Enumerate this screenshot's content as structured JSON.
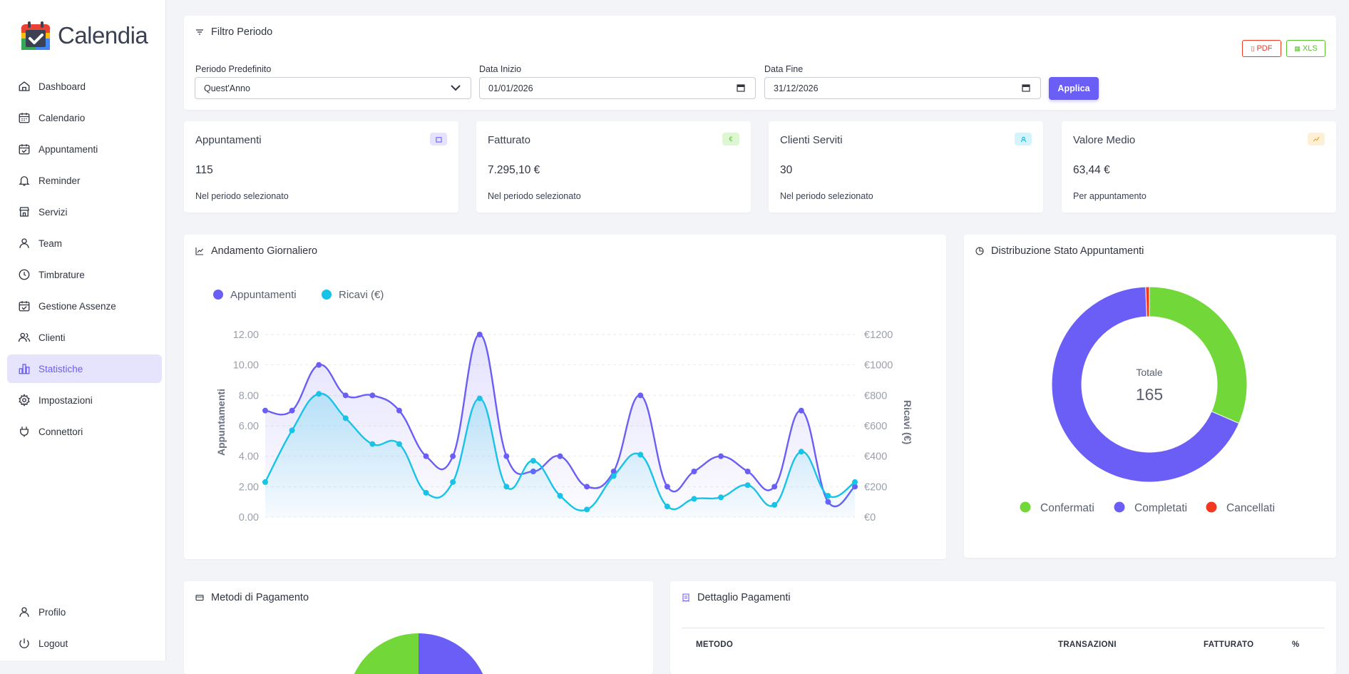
{
  "app": {
    "name": "Calendia"
  },
  "sidebar": {
    "items": [
      {
        "label": "Dashboard",
        "icon": "home-icon"
      },
      {
        "label": "Calendario",
        "icon": "calendar-icon"
      },
      {
        "label": "Appuntamenti",
        "icon": "calendar-check-icon"
      },
      {
        "label": "Reminder",
        "icon": "bell-icon"
      },
      {
        "label": "Servizi",
        "icon": "store-icon"
      },
      {
        "label": "Team",
        "icon": "user-icon"
      },
      {
        "label": "Timbrature",
        "icon": "clock-icon"
      },
      {
        "label": "Gestione Assenze",
        "icon": "calendar-check-icon"
      },
      {
        "label": "Clienti",
        "icon": "users-icon"
      },
      {
        "label": "Statistiche",
        "icon": "bar-chart-icon",
        "active": true
      },
      {
        "label": "Impostazioni",
        "icon": "gear-icon"
      },
      {
        "label": "Connettori",
        "icon": "plug-icon"
      }
    ],
    "bottom": [
      {
        "label": "Profilo",
        "icon": "user-icon"
      },
      {
        "label": "Logout",
        "icon": "power-icon"
      }
    ]
  },
  "filter": {
    "title": "Filtro Periodo",
    "preset_label": "Periodo Predefinito",
    "preset_value": "Quest'Anno",
    "start_label": "Data Inizio",
    "start_value": "01/01/2026",
    "end_label": "Data Fine",
    "end_value": "31/12/2026",
    "apply_label": "Applica",
    "pdf_label": "PDF",
    "xls_label": "XLS"
  },
  "stats": [
    {
      "title": "Appuntamenti",
      "value": "115",
      "sub": "Nel periodo selezionato",
      "icon": "calendar-icon",
      "color": "#6a5ef7"
    },
    {
      "title": "Fatturato",
      "value": "7.295,10 €",
      "sub": "Nel periodo selezionato",
      "icon": "euro-icon",
      "color": "#56c42a"
    },
    {
      "title": "Clienti Serviti",
      "value": "30",
      "sub": "Nel periodo selezionato",
      "icon": "users-icon",
      "color": "#17b8d6"
    },
    {
      "title": "Valore Medio",
      "value": "63,44 €",
      "sub": "Per appuntamento",
      "icon": "trend-icon",
      "color": "#f5a623"
    }
  ],
  "daily": {
    "title": "Andamento Giornaliero",
    "legend": [
      "Appuntamenti",
      "Ricavi (€)"
    ],
    "ylabel_left": "Appuntamenti",
    "ylabel_right": "Ricavi (€)",
    "ticks_left": [
      "12.00",
      "10.00",
      "8.00",
      "6.00",
      "4.00",
      "2.00",
      "0.00"
    ],
    "ticks_right": [
      "€1200",
      "€1000",
      "€800",
      "€600",
      "€400",
      "€200",
      "€0"
    ]
  },
  "donut": {
    "title": "Distribuzione Stato Appuntamenti",
    "total_label": "Totale",
    "total_value": "165",
    "legend": [
      "Confermati",
      "Completati",
      "Cancellati"
    ]
  },
  "payments": {
    "title": "Metodi di Pagamento"
  },
  "details": {
    "title": "Dettaglio Pagamenti",
    "columns": [
      "METODO",
      "TRANSAZIONI",
      "FATTURATO",
      "%"
    ]
  },
  "colors": {
    "primary": "#6a5ef7",
    "cyan": "#17c3e6",
    "green": "#72d83a",
    "red": "#f2391f"
  },
  "chart_data": [
    {
      "type": "line",
      "title": "Andamento Giornaliero",
      "series": [
        {
          "name": "Appuntamenti",
          "axis": "left",
          "values": [
            7,
            7,
            10,
            8,
            8,
            7,
            4,
            4,
            12,
            4,
            3,
            4,
            2,
            3,
            8,
            2,
            3,
            4,
            3,
            2,
            7,
            1,
            2
          ]
        },
        {
          "name": "Ricavi (€)",
          "axis": "right",
          "values": [
            230,
            570,
            810,
            650,
            480,
            480,
            160,
            230,
            780,
            200,
            370,
            140,
            50,
            270,
            410,
            70,
            120,
            130,
            210,
            80,
            430,
            140,
            230
          ]
        }
      ],
      "ylabel": "Appuntamenti",
      "ylabel_right": "Ricavi (€)",
      "ylim": [
        0,
        12
      ],
      "ylim_right": [
        0,
        1200
      ],
      "legend": "top-left"
    },
    {
      "type": "pie",
      "title": "Distribuzione Stato Appuntamenti",
      "categories": [
        "Confermati",
        "Completati",
        "Cancellati"
      ],
      "values": [
        52,
        112,
        1
      ],
      "colors": [
        "#72d83a",
        "#6a5ef7",
        "#f2391f"
      ],
      "legend": "bottom"
    }
  ]
}
